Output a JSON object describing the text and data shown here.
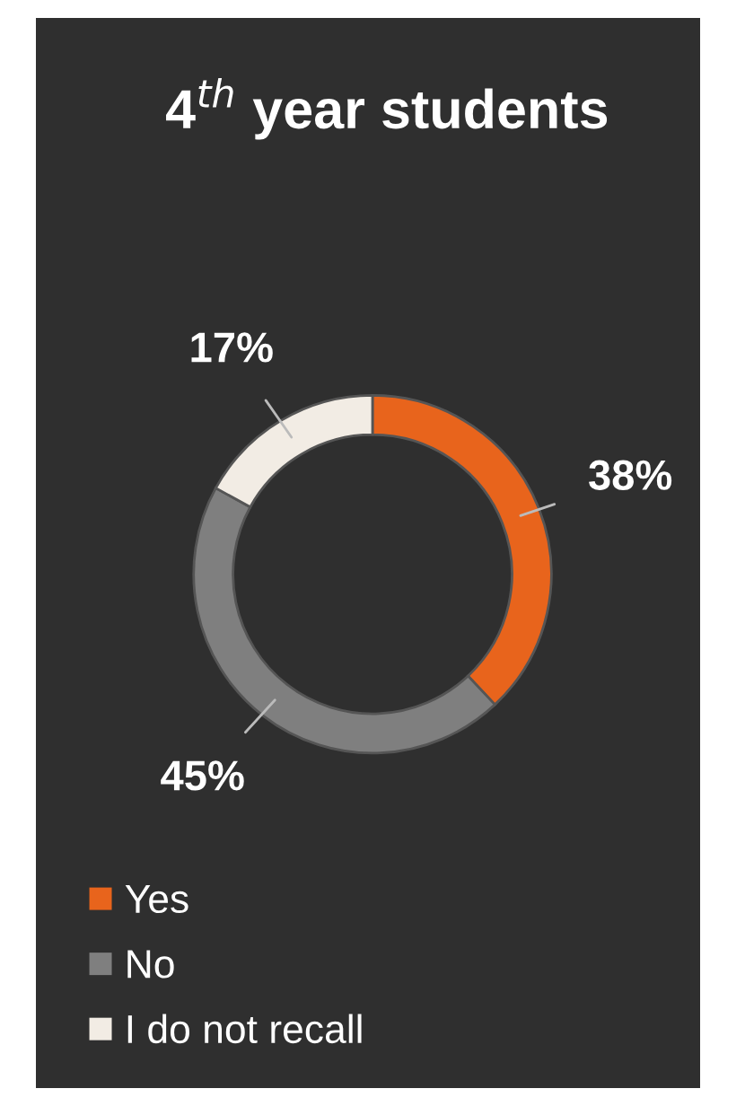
{
  "chart_data": {
    "type": "donut",
    "title": "4$^{th}$ year students",
    "categories": [
      "Yes",
      "No",
      "I do not recall"
    ],
    "values": [
      38,
      45,
      17
    ],
    "value_labels": [
      "38%",
      "45%",
      "17%"
    ],
    "colors": [
      "#e8641c",
      "#7f7f7f",
      "#f2ece4"
    ],
    "legend": "bottom left"
  }
}
